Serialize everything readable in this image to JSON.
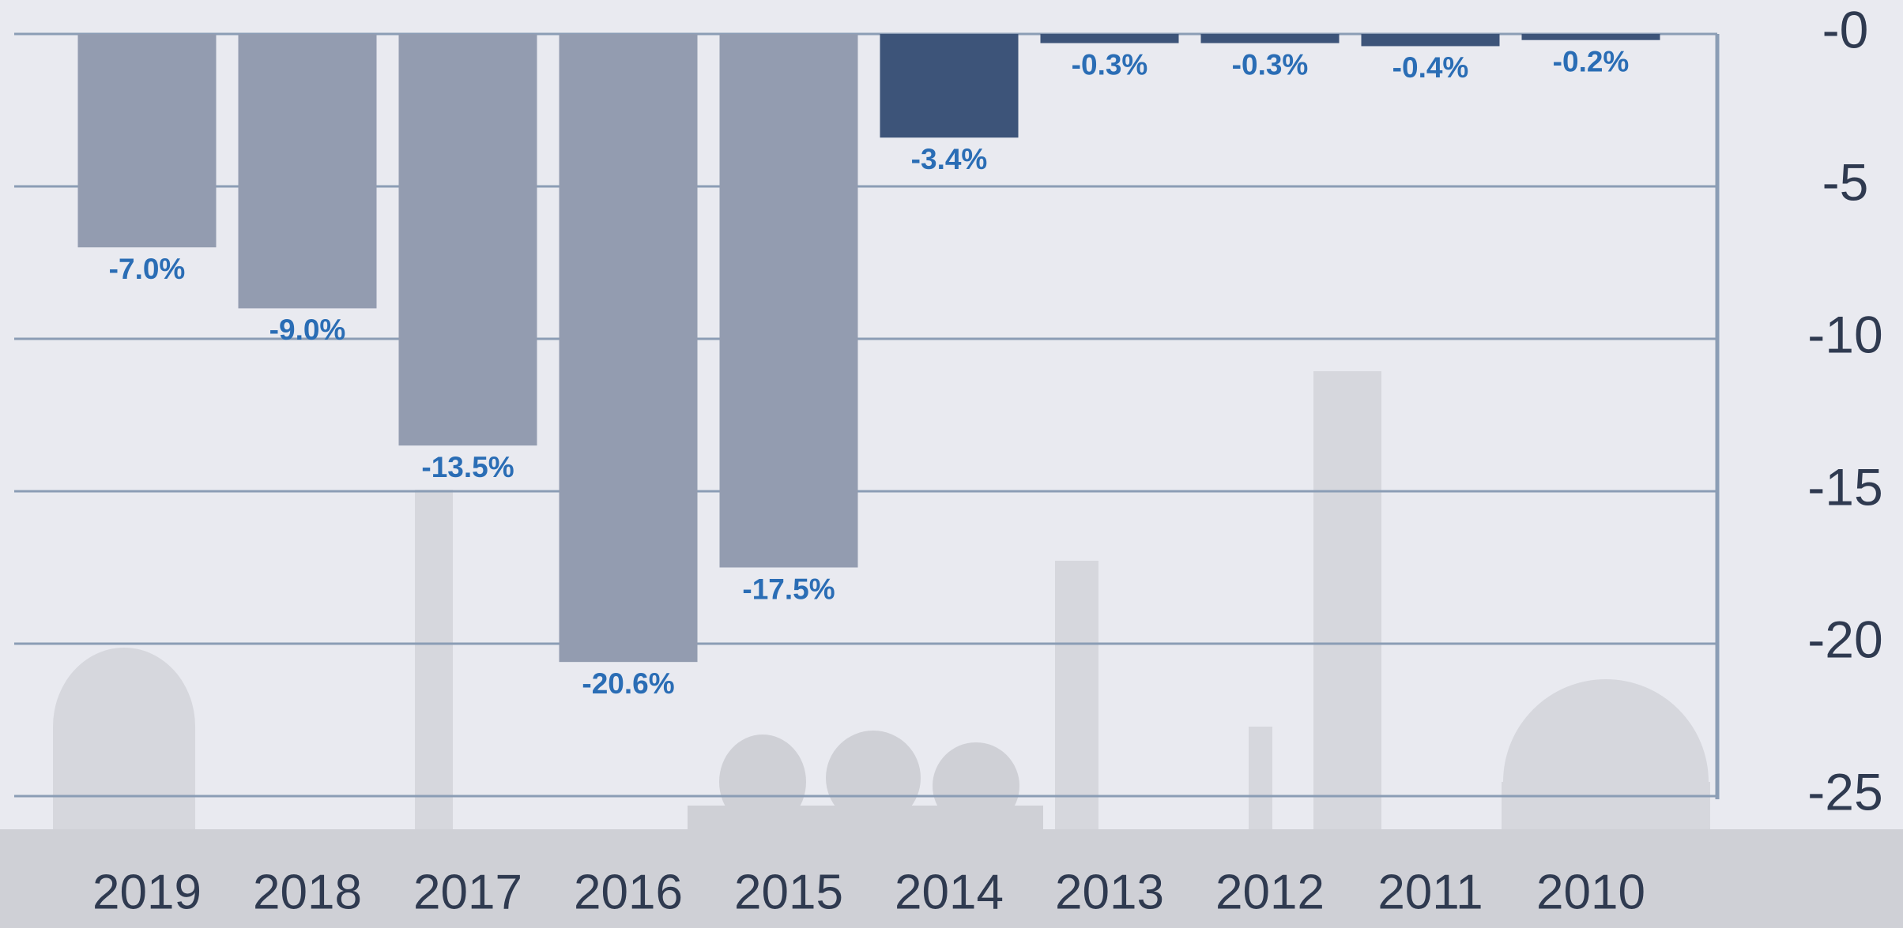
{
  "chart_data": {
    "type": "bar",
    "categories": [
      "2019",
      "2018",
      "2017",
      "2016",
      "2015",
      "2014",
      "2013",
      "2012",
      "2011",
      "2010"
    ],
    "values": [
      -7.0,
      -9.0,
      -13.5,
      -20.6,
      -17.5,
      -3.4,
      -0.3,
      -0.3,
      -0.4,
      -0.2
    ],
    "value_labels": [
      "-7.0%",
      "-9.0%",
      "-13.5%",
      "-20.6%",
      "-17.5%",
      "-3.4%",
      "-0.3%",
      "-0.3%",
      "-0.4%",
      "-0.2%"
    ],
    "colors": [
      "#939cb0",
      "#939cb0",
      "#939cb0",
      "#939cb0",
      "#939cb0",
      "#3d5479",
      "#3d5479",
      "#3d5479",
      "#3d5479",
      "#3d5479"
    ],
    "ylim": [
      -25,
      0
    ],
    "yticks": [
      {
        "value": 0,
        "label": "-0"
      },
      -5,
      -10,
      -15,
      -20,
      -25
    ],
    "grid": true
  }
}
